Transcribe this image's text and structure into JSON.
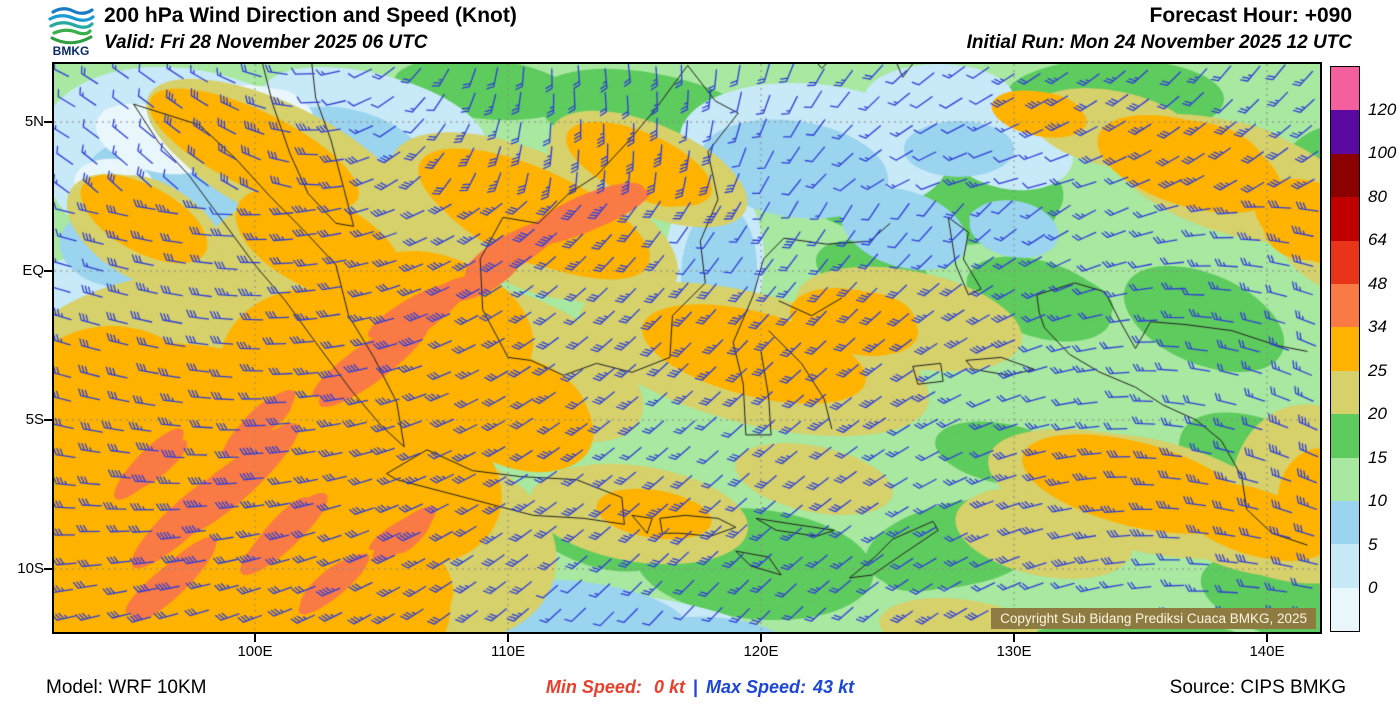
{
  "header": {
    "logo_text": "BMKG",
    "title": "200 hPa Wind Direction and Speed (Knot)",
    "valid": "Valid: Fri 28 November 2025 06 UTC",
    "forecast_hour": "Forecast Hour: +090",
    "initial_run": "Initial Run: Mon 24 November 2025 12 UTC"
  },
  "map": {
    "lat_labels": [
      "5N",
      "EQ",
      "5S",
      "10S"
    ],
    "lon_labels": [
      "100E",
      "110E",
      "120E",
      "130E",
      "140E"
    ],
    "copyright": "Copyright Sub Bidang Prediksi Cuaca BMKG, 2025",
    "copyright_bg": "#8d7b42",
    "barb_color": "#2e3ed8",
    "coast_color": "#222222",
    "grid_color": "#8a8a8a"
  },
  "legend": {
    "tick_labels_top_to_bottom": [
      "120",
      "100",
      "80",
      "64",
      "48",
      "34",
      "25",
      "20",
      "15",
      "10",
      "5",
      "0"
    ],
    "colors_top_to_bottom": [
      "#f45f9e",
      "#5a0aa0",
      "#8b0000",
      "#c00000",
      "#e83418",
      "#fa7a45",
      "#ffb300",
      "#d6d16b",
      "#5ecb5e",
      "#a8e8a0",
      "#9bd4ef",
      "#c8e9f7",
      "#e9f7fc"
    ]
  },
  "footer": {
    "model": "Model: WRF 10KM",
    "min_speed_label": "Min Speed:",
    "min_speed_value": "0 kt",
    "separator": "|",
    "max_speed_label": "Max Speed:",
    "max_speed_value": "43 kt",
    "source": "Source: CIPS BMKG"
  }
}
